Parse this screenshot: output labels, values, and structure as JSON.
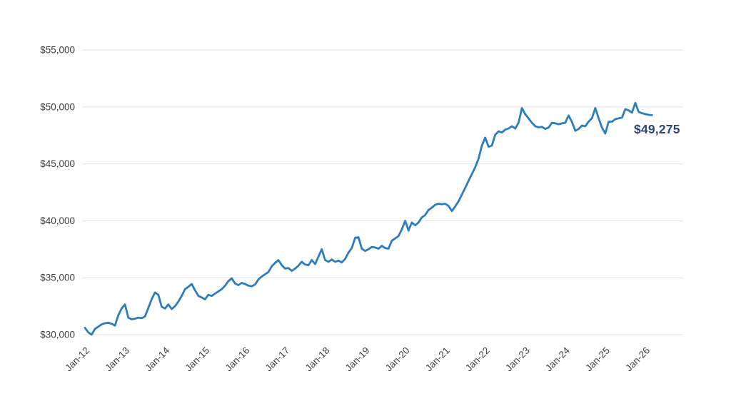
{
  "chart_data": {
    "type": "line",
    "title": "",
    "subtitle": "",
    "frequency": "monthly",
    "start_month": "Jan-2012",
    "end_month": "Mar-2026",
    "x_tick_labels": [
      "Jan-12",
      "Jan-13",
      "Jan-14",
      "Jan-15",
      "Jan-16",
      "Jan-17",
      "Jan-18",
      "Jan-19",
      "Jan-20",
      "Jan-21",
      "Jan-22",
      "Jan-23",
      "Jan-24",
      "Jan-25",
      "Jan-26"
    ],
    "y_ticks": [
      {
        "value": 30000,
        "label": "$30,000"
      },
      {
        "value": 35000,
        "label": "$35,000"
      },
      {
        "value": 40000,
        "label": "$40,000"
      },
      {
        "value": 45000,
        "label": "$45,000"
      },
      {
        "value": 50000,
        "label": "$50,000"
      },
      {
        "value": 55000,
        "label": "$55,000"
      }
    ],
    "ylim": [
      30000,
      55000
    ],
    "grid": "horizontal-only",
    "legend": "none",
    "values": [
      30600,
      30200,
      30000,
      30500,
      30700,
      30900,
      31000,
      31050,
      30950,
      30800,
      31700,
      32300,
      32650,
      31500,
      31350,
      31400,
      31500,
      31450,
      31600,
      32350,
      33100,
      33700,
      33500,
      32450,
      32300,
      32650,
      32250,
      32500,
      32900,
      33400,
      34000,
      34200,
      34450,
      33900,
      33400,
      33270,
      33100,
      33500,
      33400,
      33600,
      33800,
      34000,
      34300,
      34700,
      34950,
      34500,
      34350,
      34550,
      34450,
      34300,
      34250,
      34400,
      34850,
      35100,
      35300,
      35500,
      36000,
      36300,
      36550,
      36100,
      35800,
      35850,
      35600,
      35800,
      36050,
      36400,
      36150,
      36100,
      36550,
      36200,
      36850,
      37500,
      36550,
      36400,
      36600,
      36400,
      36500,
      36350,
      36650,
      37200,
      37600,
      38500,
      38550,
      37550,
      37350,
      37500,
      37700,
      37650,
      37550,
      37800,
      37600,
      37550,
      38250,
      38450,
      38650,
      39250,
      40000,
      39150,
      39850,
      39600,
      39850,
      40300,
      40500,
      40950,
      41150,
      41400,
      41500,
      41450,
      41500,
      41300,
      40850,
      41250,
      41700,
      42300,
      42900,
      43500,
      44100,
      44700,
      45450,
      46600,
      47300,
      46500,
      46600,
      47550,
      47850,
      47750,
      48000,
      48100,
      48300,
      48100,
      48600,
      49900,
      49350,
      49000,
      48600,
      48300,
      48200,
      48250,
      48070,
      48180,
      48600,
      48550,
      48480,
      48550,
      48600,
      49240,
      48680,
      47900,
      48060,
      48360,
      48300,
      48700,
      49000,
      49900,
      49000,
      48180,
      47670,
      48700,
      48700,
      48920,
      49000,
      49060,
      49800,
      49690,
      49500,
      50350,
      49560,
      49440,
      49370,
      49300,
      49275
    ],
    "end_label": "$49,275",
    "last_value": 49275,
    "line_color": "#2d7dbb",
    "end_label_color": "#2f4571",
    "grid_color": "#e2e2e2",
    "tick_label_color": "#3f3f3f"
  }
}
